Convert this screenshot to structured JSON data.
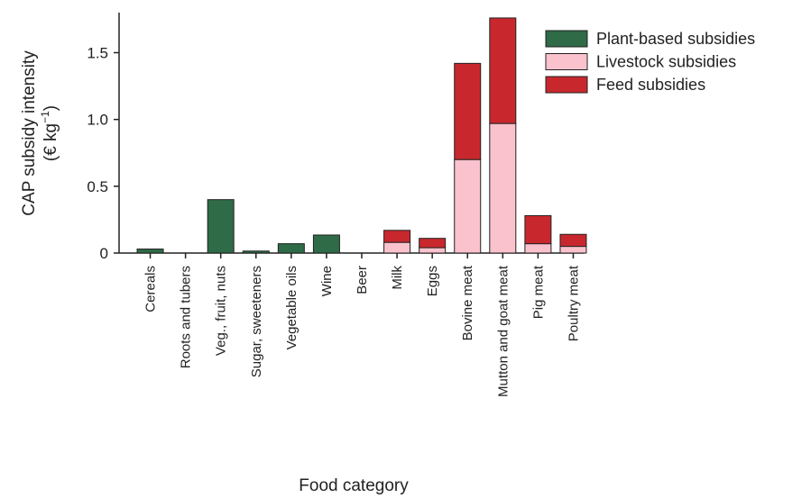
{
  "chart_data": {
    "type": "bar",
    "stacked": true,
    "xlabel": "Food category",
    "ylabel_line1": "CAP subsidy intensity",
    "ylabel_unit_prefix": "(€ kg",
    "ylabel_unit_exp": "−1",
    "ylabel_unit_suffix": ")",
    "ylim": [
      0,
      1.8
    ],
    "yticks": [
      0,
      0.5,
      1.0,
      1.5
    ],
    "ytick_labels": [
      "0",
      "0.5",
      "1.0",
      "1.5"
    ],
    "legend_position": "top-right",
    "categories": [
      "Cereals",
      "Roots and tubers",
      "Veg., fruit, nuts",
      "Sugar, sweeteners",
      "Vegetable oils",
      "Wine",
      "Beer",
      "Milk",
      "Eggs",
      "Bovine meat",
      "Mutton and goat meat",
      "Pig meat",
      "Poultry meat"
    ],
    "series": [
      {
        "name": "Plant-based subsidies",
        "color": "#2e6b46",
        "values": [
          0.03,
          0.0,
          0.4,
          0.015,
          0.07,
          0.135,
          0.0,
          0.0,
          0.0,
          0.0,
          0.0,
          0.0,
          0.0
        ]
      },
      {
        "name": "Livestock subsidies",
        "color": "#f9c2cd",
        "values": [
          0.0,
          0.0,
          0.0,
          0.0,
          0.0,
          0.0,
          0.0,
          0.08,
          0.04,
          0.7,
          0.97,
          0.07,
          0.05
        ]
      },
      {
        "name": "Feed subsidies",
        "color": "#c8282d",
        "values": [
          0.0,
          0.0,
          0.0,
          0.0,
          0.0,
          0.0,
          0.0,
          0.09,
          0.07,
          0.72,
          0.79,
          0.21,
          0.09
        ]
      }
    ],
    "legend_order": [
      0,
      1,
      2
    ]
  }
}
